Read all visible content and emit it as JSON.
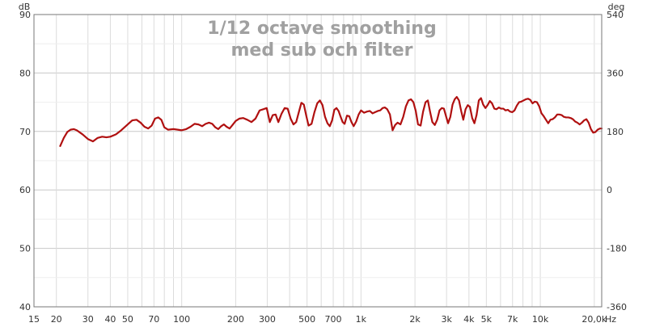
{
  "chart_data": {
    "type": "line",
    "title": "1/12 octave smoothing",
    "subtitle": "med sub och filter",
    "x_scale": "log",
    "xlim": [
      15,
      22000
    ],
    "ylim": [
      40,
      90
    ],
    "y2lim": [
      -360,
      540
    ],
    "left_unit": "dB",
    "right_unit": "deg",
    "x_unit": "Hz",
    "grid": true,
    "x_ticks": [
      {
        "value": 15,
        "label": "15"
      },
      {
        "value": 20,
        "label": "20"
      },
      {
        "value": 30,
        "label": "30"
      },
      {
        "value": 40,
        "label": "40"
      },
      {
        "value": 50,
        "label": "50"
      },
      {
        "value": 70,
        "label": "70"
      },
      {
        "value": 100,
        "label": "100"
      },
      {
        "value": 200,
        "label": "200"
      },
      {
        "value": 300,
        "label": "300"
      },
      {
        "value": 500,
        "label": "500"
      },
      {
        "value": 700,
        "label": "700"
      },
      {
        "value": 1000,
        "label": "1k"
      },
      {
        "value": 2000,
        "label": "2k"
      },
      {
        "value": 3000,
        "label": "3k"
      },
      {
        "value": 4000,
        "label": "4k"
      },
      {
        "value": 5000,
        "label": "5k"
      },
      {
        "value": 7000,
        "label": "7k"
      },
      {
        "value": 10000,
        "label": "10k"
      },
      {
        "value": 20000,
        "label": "20,0k"
      }
    ],
    "y_ticks": [
      {
        "value": 40,
        "label": "40"
      },
      {
        "value": 50,
        "label": "50"
      },
      {
        "value": 60,
        "label": "60"
      },
      {
        "value": 70,
        "label": "70"
      },
      {
        "value": 80,
        "label": "80"
      },
      {
        "value": 90,
        "label": "90"
      }
    ],
    "y2_ticks": [
      {
        "value": -360,
        "label": "-360"
      },
      {
        "value": -180,
        "label": "-180"
      },
      {
        "value": 0,
        "label": "0"
      },
      {
        "value": 180,
        "label": "180"
      },
      {
        "value": 360,
        "label": "360"
      },
      {
        "value": 540,
        "label": "540"
      }
    ],
    "series": [
      {
        "color": "#b01010",
        "points": [
          [
            21,
            67.5
          ],
          [
            22,
            68.9
          ],
          [
            23,
            69.9
          ],
          [
            24,
            70.3
          ],
          [
            25,
            70.4
          ],
          [
            26,
            70.2
          ],
          [
            28,
            69.5
          ],
          [
            30,
            68.7
          ],
          [
            32,
            68.3
          ],
          [
            34,
            68.9
          ],
          [
            36,
            69.1
          ],
          [
            38,
            69.0
          ],
          [
            40,
            69.1
          ],
          [
            43,
            69.5
          ],
          [
            46,
            70.2
          ],
          [
            50,
            71.2
          ],
          [
            53,
            71.9
          ],
          [
            56,
            72.0
          ],
          [
            59,
            71.5
          ],
          [
            62,
            70.8
          ],
          [
            65,
            70.5
          ],
          [
            68,
            71.0
          ],
          [
            71,
            72.2
          ],
          [
            74,
            72.4
          ],
          [
            77,
            72.0
          ],
          [
            80,
            70.7
          ],
          [
            84,
            70.3
          ],
          [
            90,
            70.4
          ],
          [
            95,
            70.3
          ],
          [
            100,
            70.2
          ],
          [
            106,
            70.4
          ],
          [
            112,
            70.8
          ],
          [
            118,
            71.3
          ],
          [
            124,
            71.2
          ],
          [
            130,
            70.9
          ],
          [
            136,
            71.3
          ],
          [
            142,
            71.5
          ],
          [
            148,
            71.3
          ],
          [
            154,
            70.7
          ],
          [
            160,
            70.4
          ],
          [
            166,
            70.9
          ],
          [
            172,
            71.2
          ],
          [
            178,
            70.8
          ],
          [
            185,
            70.5
          ],
          [
            192,
            71.1
          ],
          [
            200,
            71.8
          ],
          [
            210,
            72.2
          ],
          [
            220,
            72.3
          ],
          [
            232,
            72.0
          ],
          [
            245,
            71.6
          ],
          [
            258,
            72.2
          ],
          [
            272,
            73.6
          ],
          [
            285,
            73.8
          ],
          [
            298,
            74.0
          ],
          [
            310,
            71.6
          ],
          [
            322,
            72.8
          ],
          [
            334,
            72.9
          ],
          [
            346,
            71.6
          ],
          [
            360,
            73.0
          ],
          [
            375,
            74.0
          ],
          [
            390,
            73.9
          ],
          [
            405,
            72.2
          ],
          [
            420,
            71.2
          ],
          [
            435,
            71.6
          ],
          [
            450,
            73.3
          ],
          [
            465,
            74.9
          ],
          [
            480,
            74.6
          ],
          [
            495,
            72.7
          ],
          [
            510,
            71.0
          ],
          [
            530,
            71.3
          ],
          [
            550,
            73.3
          ],
          [
            570,
            74.8
          ],
          [
            590,
            75.3
          ],
          [
            610,
            74.5
          ],
          [
            630,
            72.5
          ],
          [
            650,
            71.4
          ],
          [
            670,
            70.9
          ],
          [
            690,
            71.9
          ],
          [
            710,
            73.7
          ],
          [
            730,
            74.0
          ],
          [
            750,
            73.5
          ],
          [
            770,
            72.5
          ],
          [
            790,
            71.6
          ],
          [
            810,
            71.3
          ],
          [
            835,
            72.7
          ],
          [
            860,
            72.6
          ],
          [
            885,
            71.6
          ],
          [
            910,
            70.9
          ],
          [
            940,
            71.7
          ],
          [
            970,
            72.9
          ],
          [
            1000,
            73.6
          ],
          [
            1040,
            73.2
          ],
          [
            1080,
            73.4
          ],
          [
            1120,
            73.5
          ],
          [
            1160,
            73.1
          ],
          [
            1200,
            73.3
          ],
          [
            1240,
            73.5
          ],
          [
            1280,
            73.6
          ],
          [
            1320,
            74.0
          ],
          [
            1360,
            74.1
          ],
          [
            1400,
            73.8
          ],
          [
            1450,
            72.9
          ],
          [
            1500,
            70.2
          ],
          [
            1550,
            71.1
          ],
          [
            1600,
            71.5
          ],
          [
            1660,
            71.2
          ],
          [
            1720,
            72.5
          ],
          [
            1780,
            74.3
          ],
          [
            1840,
            75.3
          ],
          [
            1900,
            75.5
          ],
          [
            1960,
            75.0
          ],
          [
            2020,
            73.5
          ],
          [
            2080,
            71.2
          ],
          [
            2150,
            71.0
          ],
          [
            2220,
            73.4
          ],
          [
            2290,
            75.0
          ],
          [
            2360,
            75.3
          ],
          [
            2430,
            73.3
          ],
          [
            2500,
            71.6
          ],
          [
            2580,
            71.1
          ],
          [
            2660,
            72.0
          ],
          [
            2740,
            73.6
          ],
          [
            2820,
            74.0
          ],
          [
            2900,
            73.9
          ],
          [
            2980,
            72.6
          ],
          [
            3060,
            71.4
          ],
          [
            3150,
            72.5
          ],
          [
            3240,
            74.6
          ],
          [
            3330,
            75.5
          ],
          [
            3420,
            75.9
          ],
          [
            3520,
            75.3
          ],
          [
            3620,
            73.5
          ],
          [
            3720,
            72.0
          ],
          [
            3830,
            73.8
          ],
          [
            3940,
            74.5
          ],
          [
            4050,
            74.2
          ],
          [
            4170,
            72.3
          ],
          [
            4290,
            71.4
          ],
          [
            4410,
            72.8
          ],
          [
            4540,
            75.3
          ],
          [
            4670,
            75.7
          ],
          [
            4800,
            74.6
          ],
          [
            4940,
            74.0
          ],
          [
            5080,
            74.5
          ],
          [
            5230,
            75.2
          ],
          [
            5380,
            74.8
          ],
          [
            5540,
            73.9
          ],
          [
            5700,
            73.8
          ],
          [
            5870,
            74.1
          ],
          [
            6040,
            73.9
          ],
          [
            6220,
            73.9
          ],
          [
            6400,
            73.6
          ],
          [
            6590,
            73.7
          ],
          [
            6780,
            73.4
          ],
          [
            6980,
            73.3
          ],
          [
            7180,
            73.6
          ],
          [
            7390,
            74.4
          ],
          [
            7610,
            75.0
          ],
          [
            7830,
            75.1
          ],
          [
            8060,
            75.3
          ],
          [
            8300,
            75.5
          ],
          [
            8540,
            75.6
          ],
          [
            8790,
            75.4
          ],
          [
            9050,
            74.8
          ],
          [
            9310,
            75.1
          ],
          [
            9580,
            75.0
          ],
          [
            9860,
            74.3
          ],
          [
            10150,
            73.1
          ],
          [
            10450,
            72.6
          ],
          [
            10750,
            72.0
          ],
          [
            11070,
            71.4
          ],
          [
            11390,
            72.0
          ],
          [
            11720,
            72.1
          ],
          [
            12060,
            72.4
          ],
          [
            12420,
            72.9
          ],
          [
            12780,
            72.9
          ],
          [
            13150,
            72.8
          ],
          [
            13540,
            72.5
          ],
          [
            13930,
            72.4
          ],
          [
            14340,
            72.4
          ],
          [
            14760,
            72.3
          ],
          [
            15190,
            72.1
          ],
          [
            15640,
            71.7
          ],
          [
            16100,
            71.5
          ],
          [
            16570,
            71.2
          ],
          [
            17060,
            71.5
          ],
          [
            17560,
            71.9
          ],
          [
            18070,
            72.1
          ],
          [
            18600,
            71.5
          ],
          [
            19150,
            70.4
          ],
          [
            19710,
            69.8
          ],
          [
            20290,
            69.9
          ],
          [
            20880,
            70.3
          ],
          [
            21490,
            70.5
          ],
          [
            22000,
            70.5
          ]
        ]
      }
    ]
  }
}
